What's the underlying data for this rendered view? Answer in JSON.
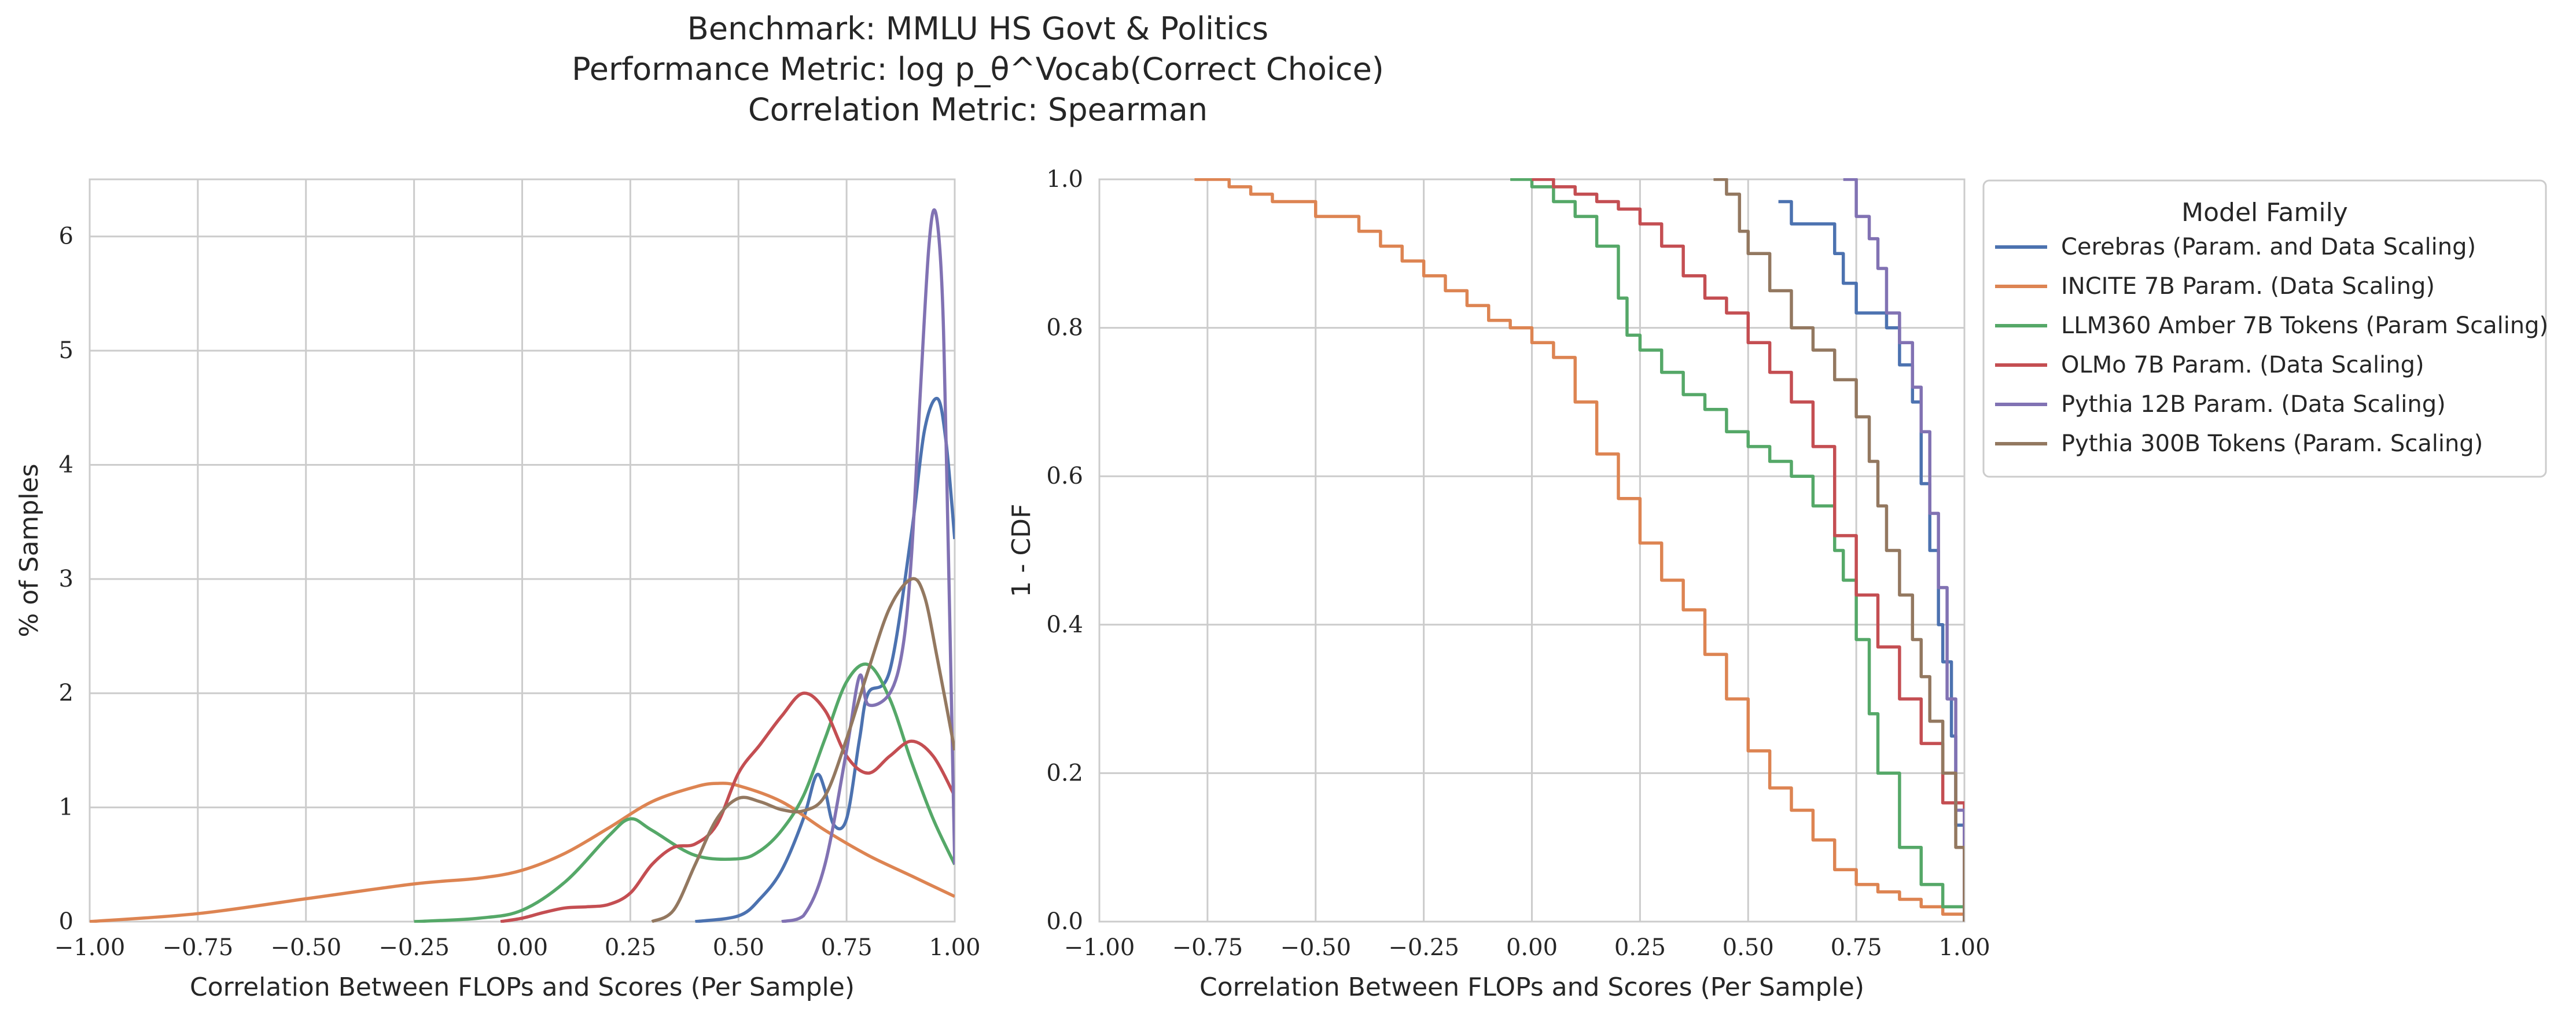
{
  "figure": {
    "title_lines": [
      "Benchmark: MMLU HS Govt & Politics",
      "Performance Metric: log p_θ^Vocab(Correct Choice)",
      "Correlation Metric: Spearman"
    ]
  },
  "legend": {
    "title": "Model Family",
    "entries": [
      {
        "label": "Cerebras (Param. and Data Scaling)",
        "color": "#4c72b0"
      },
      {
        "label": "INCITE 7B Param. (Data Scaling)",
        "color": "#dd8452"
      },
      {
        "label": "LLM360 Amber 7B Tokens (Param Scaling)",
        "color": "#55a868"
      },
      {
        "label": "OLMo 7B Param. (Data Scaling)",
        "color": "#c44e52"
      },
      {
        "label": "Pythia 12B Param. (Data Scaling)",
        "color": "#8172b3"
      },
      {
        "label": "Pythia 300B Tokens (Param. Scaling)",
        "color": "#937860"
      }
    ]
  },
  "chart_data": [
    {
      "type": "line",
      "panel": "kde",
      "xlabel": "Correlation Between FLOPs and Scores (Per Sample)",
      "ylabel": "% of Samples",
      "xlim": [
        -1.0,
        1.0
      ],
      "ylim": [
        0,
        6.5
      ],
      "xticks": [
        "−1.00",
        "−0.75",
        "−0.50",
        "−0.25",
        "0.00",
        "0.25",
        "0.50",
        "0.75",
        "1.00"
      ],
      "yticks": [
        "0",
        "1",
        "2",
        "3",
        "4",
        "5",
        "6"
      ],
      "grid": true,
      "series": [
        {
          "name": "Cerebras (Param. and Data Scaling)",
          "color": "#4c72b0",
          "x": [
            0.4,
            0.5,
            0.55,
            0.6,
            0.65,
            0.68,
            0.7,
            0.72,
            0.75,
            0.78,
            0.8,
            0.85,
            0.9,
            0.93,
            0.96,
            0.98,
            1.0
          ],
          "y": [
            0.0,
            0.05,
            0.2,
            0.45,
            0.9,
            1.28,
            1.15,
            0.85,
            0.9,
            1.6,
            2.0,
            2.2,
            3.4,
            4.3,
            4.58,
            4.2,
            3.35
          ]
        },
        {
          "name": "INCITE 7B Param. (Data Scaling)",
          "color": "#dd8452",
          "x": [
            -1.0,
            -0.75,
            -0.5,
            -0.25,
            -0.1,
            0.0,
            0.1,
            0.2,
            0.3,
            0.4,
            0.45,
            0.5,
            0.6,
            0.7,
            0.8,
            0.9,
            1.0
          ],
          "y": [
            0.0,
            0.07,
            0.2,
            0.33,
            0.38,
            0.45,
            0.6,
            0.82,
            1.05,
            1.18,
            1.21,
            1.19,
            1.05,
            0.8,
            0.58,
            0.4,
            0.22
          ]
        },
        {
          "name": "LLM360 Amber 7B Tokens (Param Scaling)",
          "color": "#55a868",
          "x": [
            -0.25,
            -0.1,
            0.0,
            0.1,
            0.2,
            0.25,
            0.3,
            0.4,
            0.5,
            0.55,
            0.6,
            0.65,
            0.7,
            0.75,
            0.8,
            0.85,
            0.9,
            0.95,
            1.0
          ],
          "y": [
            0.0,
            0.03,
            0.1,
            0.35,
            0.75,
            0.9,
            0.8,
            0.58,
            0.55,
            0.62,
            0.8,
            1.1,
            1.6,
            2.1,
            2.25,
            1.95,
            1.4,
            0.9,
            0.5
          ]
        },
        {
          "name": "OLMo 7B Param. (Data Scaling)",
          "color": "#c44e52",
          "x": [
            -0.05,
            0.0,
            0.05,
            0.1,
            0.15,
            0.2,
            0.25,
            0.3,
            0.35,
            0.4,
            0.45,
            0.5,
            0.55,
            0.6,
            0.65,
            0.7,
            0.75,
            0.8,
            0.85,
            0.9,
            0.95,
            1.0
          ],
          "y": [
            0.0,
            0.03,
            0.08,
            0.12,
            0.13,
            0.15,
            0.25,
            0.5,
            0.65,
            0.68,
            0.85,
            1.3,
            1.55,
            1.8,
            2.0,
            1.85,
            1.45,
            1.3,
            1.45,
            1.58,
            1.45,
            1.1
          ]
        },
        {
          "name": "Pythia 12B Param. (Data Scaling)",
          "color": "#8172b3",
          "x": [
            0.6,
            0.65,
            0.7,
            0.75,
            0.78,
            0.8,
            0.85,
            0.88,
            0.9,
            0.92,
            0.94,
            0.955,
            0.97,
            0.98,
            1.0
          ],
          "y": [
            0.0,
            0.05,
            0.5,
            1.5,
            2.15,
            1.9,
            2.0,
            2.4,
            3.2,
            4.6,
            5.9,
            6.22,
            5.6,
            4.2,
            0.5
          ]
        },
        {
          "name": "Pythia 300B Tokens (Param. Scaling)",
          "color": "#937860",
          "x": [
            0.3,
            0.35,
            0.4,
            0.45,
            0.5,
            0.55,
            0.6,
            0.65,
            0.7,
            0.75,
            0.8,
            0.85,
            0.9,
            0.93,
            0.96,
            1.0
          ],
          "y": [
            0.0,
            0.1,
            0.5,
            0.9,
            1.08,
            1.05,
            0.98,
            0.97,
            1.1,
            1.6,
            2.2,
            2.75,
            3.0,
            2.85,
            2.3,
            1.5
          ]
        }
      ]
    },
    {
      "type": "line",
      "panel": "survival",
      "xlabel": "Correlation Between FLOPs and Scores (Per Sample)",
      "ylabel": "1 - CDF",
      "xlim": [
        -1.0,
        1.0
      ],
      "ylim": [
        0,
        1.0
      ],
      "xticks": [
        "−1.00",
        "−0.75",
        "−0.50",
        "−0.25",
        "0.00",
        "0.25",
        "0.50",
        "0.75",
        "1.00"
      ],
      "yticks": [
        "0.0",
        "0.2",
        "0.4",
        "0.6",
        "0.8",
        "1.0"
      ],
      "grid": true,
      "step": true,
      "series": [
        {
          "name": "Cerebras (Param. and Data Scaling)",
          "color": "#4c72b0",
          "x": [
            0.57,
            0.6,
            0.65,
            0.7,
            0.72,
            0.75,
            0.78,
            0.82,
            0.85,
            0.88,
            0.9,
            0.92,
            0.94,
            0.95,
            0.97,
            0.98,
            1.0
          ],
          "y": [
            0.97,
            0.94,
            0.94,
            0.9,
            0.86,
            0.82,
            0.82,
            0.8,
            0.75,
            0.7,
            0.59,
            0.5,
            0.4,
            0.35,
            0.25,
            0.13,
            0.13
          ]
        },
        {
          "name": "INCITE 7B Param. (Data Scaling)",
          "color": "#dd8452",
          "x": [
            -0.78,
            -0.7,
            -0.65,
            -0.6,
            -0.5,
            -0.4,
            -0.35,
            -0.3,
            -0.25,
            -0.2,
            -0.15,
            -0.1,
            -0.05,
            0.0,
            0.05,
            0.1,
            0.15,
            0.2,
            0.25,
            0.3,
            0.35,
            0.4,
            0.45,
            0.5,
            0.55,
            0.6,
            0.65,
            0.7,
            0.75,
            0.8,
            0.85,
            0.9,
            0.95,
            1.0
          ],
          "y": [
            1.0,
            0.99,
            0.98,
            0.97,
            0.95,
            0.93,
            0.91,
            0.89,
            0.87,
            0.85,
            0.83,
            0.81,
            0.8,
            0.78,
            0.76,
            0.7,
            0.63,
            0.57,
            0.51,
            0.46,
            0.42,
            0.36,
            0.3,
            0.23,
            0.18,
            0.15,
            0.11,
            0.07,
            0.05,
            0.04,
            0.03,
            0.02,
            0.01,
            0.0
          ]
        },
        {
          "name": "LLM360 Amber 7B Tokens (Param Scaling)",
          "color": "#55a868",
          "x": [
            -0.05,
            0.0,
            0.05,
            0.1,
            0.15,
            0.2,
            0.22,
            0.25,
            0.3,
            0.35,
            0.4,
            0.45,
            0.5,
            0.55,
            0.6,
            0.65,
            0.7,
            0.72,
            0.75,
            0.78,
            0.8,
            0.85,
            0.9,
            0.95,
            1.0
          ],
          "y": [
            1.0,
            0.99,
            0.97,
            0.95,
            0.91,
            0.84,
            0.79,
            0.77,
            0.74,
            0.71,
            0.69,
            0.66,
            0.64,
            0.62,
            0.6,
            0.56,
            0.5,
            0.46,
            0.38,
            0.28,
            0.2,
            0.1,
            0.05,
            0.02,
            0.0
          ]
        },
        {
          "name": "OLMo 7B Param. (Data Scaling)",
          "color": "#c44e52",
          "x": [
            0.0,
            0.05,
            0.1,
            0.15,
            0.2,
            0.25,
            0.3,
            0.35,
            0.4,
            0.45,
            0.5,
            0.55,
            0.6,
            0.65,
            0.7,
            0.75,
            0.8,
            0.85,
            0.9,
            0.95,
            1.0
          ],
          "y": [
            1.0,
            0.99,
            0.98,
            0.97,
            0.96,
            0.94,
            0.91,
            0.87,
            0.84,
            0.82,
            0.78,
            0.74,
            0.7,
            0.64,
            0.52,
            0.44,
            0.37,
            0.3,
            0.24,
            0.16,
            0.05
          ]
        },
        {
          "name": "Pythia 12B Param. (Data Scaling)",
          "color": "#8172b3",
          "x": [
            0.72,
            0.75,
            0.78,
            0.8,
            0.82,
            0.85,
            0.88,
            0.9,
            0.92,
            0.94,
            0.96,
            0.98,
            1.0
          ],
          "y": [
            1.0,
            0.95,
            0.92,
            0.88,
            0.82,
            0.78,
            0.72,
            0.66,
            0.55,
            0.45,
            0.3,
            0.15,
            0.05
          ]
        },
        {
          "name": "Pythia 300B Tokens (Param. Scaling)",
          "color": "#937860",
          "x": [
            0.42,
            0.45,
            0.48,
            0.5,
            0.55,
            0.6,
            0.65,
            0.7,
            0.75,
            0.78,
            0.8,
            0.82,
            0.85,
            0.88,
            0.9,
            0.92,
            0.95,
            0.98,
            1.0
          ],
          "y": [
            1.0,
            0.98,
            0.93,
            0.9,
            0.85,
            0.8,
            0.77,
            0.73,
            0.68,
            0.62,
            0.56,
            0.5,
            0.44,
            0.38,
            0.33,
            0.27,
            0.2,
            0.1,
            0.0
          ]
        }
      ]
    }
  ]
}
